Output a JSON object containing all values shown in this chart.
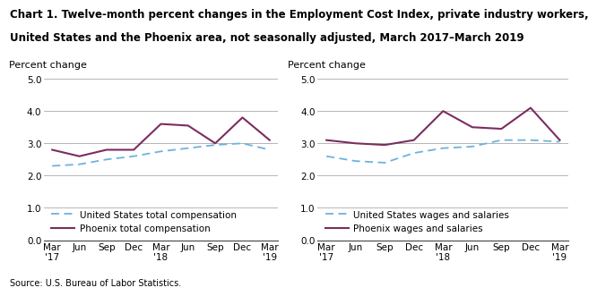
{
  "title_line1": "Chart 1. Twelve-month percent changes in the Employment Cost Index, private industry workers,",
  "title_line2": "United States and the Phoenix area, not seasonally adjusted, March 2017–March 2019",
  "source": "Source: U.S. Bureau of Labor Statistics.",
  "ylabel": "Percent change",
  "x_labels": [
    "Mar\n'17",
    "Jun",
    "Sep",
    "Dec",
    "Mar\n'18",
    "Jun",
    "Sep",
    "Dec",
    "Mar\n'19"
  ],
  "x_positions": [
    0,
    1,
    2,
    3,
    4,
    5,
    6,
    7,
    8
  ],
  "ylim": [
    0.0,
    5.0
  ],
  "yticks": [
    0.0,
    1.0,
    2.0,
    3.0,
    4.0,
    5.0
  ],
  "chart1": {
    "us_total_comp": [
      2.3,
      2.35,
      2.5,
      2.6,
      2.75,
      2.85,
      2.95,
      3.0,
      2.8
    ],
    "phoenix_total_comp": [
      2.8,
      2.6,
      2.8,
      2.8,
      3.6,
      3.55,
      3.0,
      3.8,
      3.1
    ],
    "legend1": "United States total compensation",
    "legend2": "Phoenix total compensation"
  },
  "chart2": {
    "us_wages_salaries": [
      2.6,
      2.45,
      2.4,
      2.7,
      2.85,
      2.9,
      3.1,
      3.1,
      3.05
    ],
    "phoenix_wages_salaries": [
      3.1,
      3.0,
      2.95,
      3.1,
      4.0,
      3.5,
      3.45,
      4.1,
      3.1
    ],
    "legend1": "United States wages and salaries",
    "legend2": "Phoenix wages and salaries"
  },
  "us_line_color": "#6BB3E0",
  "phoenix_line_color": "#7B2D5E",
  "us_linestyle": "--",
  "phoenix_linestyle": "-",
  "grid_color": "#AAAAAA",
  "background_color": "#FFFFFF",
  "title_fontsize": 8.5,
  "label_fontsize": 8,
  "tick_fontsize": 7.5,
  "legend_fontsize": 7.5,
  "source_fontsize": 7
}
